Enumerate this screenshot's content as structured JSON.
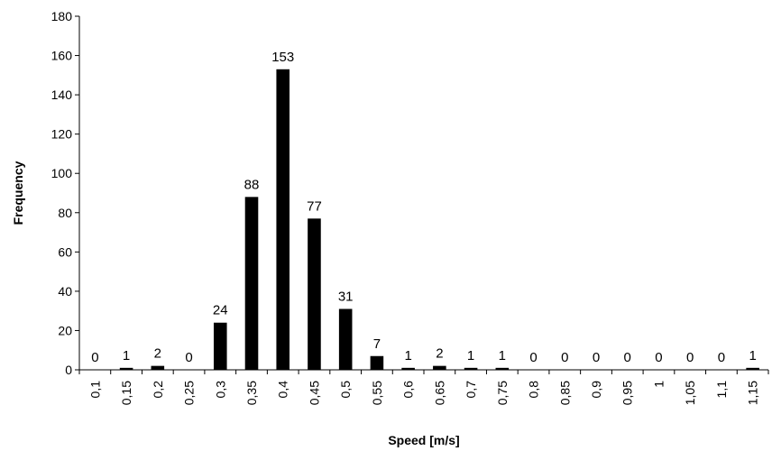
{
  "chart_data": {
    "type": "bar",
    "title": "",
    "xlabel": "Speed [m/s]",
    "ylabel": "Frequency",
    "ylim": [
      0,
      180
    ],
    "yticks": [
      0,
      20,
      40,
      60,
      80,
      100,
      120,
      140,
      160,
      180
    ],
    "grid": false,
    "legend": "none",
    "bar_color": "#000000",
    "categories": [
      "0,1",
      "0,15",
      "0,2",
      "0,25",
      "0,3",
      "0,35",
      "0,4",
      "0,45",
      "0,5",
      "0,55",
      "0,6",
      "0,65",
      "0,7",
      "0,75",
      "0,8",
      "0,85",
      "0,9",
      "0,95",
      "1",
      "1,05",
      "1,1",
      "1,15"
    ],
    "values": [
      0,
      1,
      2,
      0,
      24,
      88,
      153,
      77,
      31,
      7,
      1,
      2,
      1,
      1,
      0,
      0,
      0,
      0,
      0,
      0,
      0,
      1
    ]
  }
}
